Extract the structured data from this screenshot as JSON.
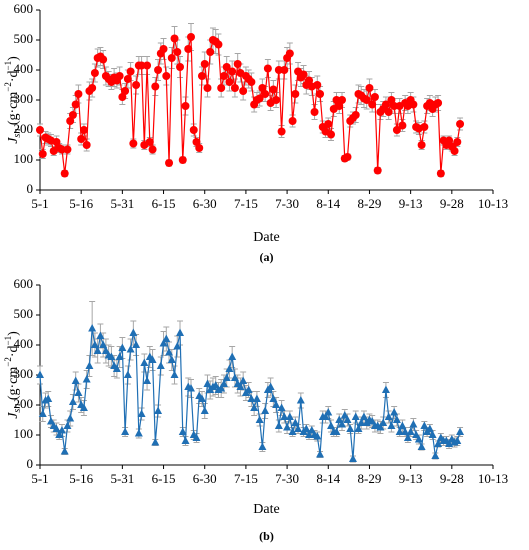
{
  "chart_data": [
    {
      "type": "line",
      "panel_label": "(a)",
      "xlabel": "Date",
      "ylabel_parts": [
        "J",
        "sn",
        " (g·cm",
        "−2",
        "·d",
        "−1",
        ")"
      ],
      "color": "#ff0000",
      "marker": "circle",
      "error_color": "#a6a6a6",
      "xlim": [
        0,
        165
      ],
      "xticks": [
        {
          "value": 0,
          "label": "5-1"
        },
        {
          "value": 15,
          "label": "5-16"
        },
        {
          "value": 30,
          "label": "5-31"
        },
        {
          "value": 45,
          "label": "6-15"
        },
        {
          "value": 60,
          "label": "6-30"
        },
        {
          "value": 75,
          "label": "7-15"
        },
        {
          "value": 90,
          "label": "7-30"
        },
        {
          "value": 105,
          "label": "8-14"
        },
        {
          "value": 120,
          "label": "8-29"
        },
        {
          "value": 135,
          "label": "9-13"
        },
        {
          "value": 150,
          "label": "9-28"
        },
        {
          "value": 165,
          "label": "10-13"
        }
      ],
      "ylim": [
        0,
        600
      ],
      "yticks": [
        0,
        100,
        200,
        300,
        400,
        500,
        600
      ],
      "x": [
        0,
        1,
        2,
        3,
        4,
        5,
        6,
        7,
        8,
        9,
        10,
        11,
        12,
        13,
        14,
        15,
        16,
        17,
        18,
        19,
        20,
        21,
        22,
        23,
        24,
        25,
        26,
        27,
        28,
        29,
        30,
        31,
        32,
        33,
        34,
        35,
        36,
        37,
        38,
        39,
        40,
        41,
        42,
        43,
        44,
        45,
        46,
        47,
        48,
        49,
        50,
        51,
        52,
        53,
        54,
        55,
        56,
        57,
        58,
        59,
        60,
        61,
        62,
        63,
        64,
        65,
        66,
        67,
        68,
        69,
        70,
        71,
        72,
        73,
        74,
        75,
        76,
        77,
        78,
        79,
        80,
        81,
        82,
        83,
        84,
        85,
        86,
        87,
        88,
        89,
        90,
        91,
        92,
        93,
        94,
        95,
        96,
        97,
        98,
        99,
        100,
        101,
        102,
        103,
        104,
        105,
        106,
        107,
        108,
        109,
        110,
        111,
        112,
        113,
        114,
        115,
        116,
        117,
        118,
        119,
        120,
        121,
        122,
        123,
        124,
        125,
        126,
        127,
        128,
        129,
        130,
        131,
        132,
        133,
        134,
        135,
        136,
        137,
        138,
        139,
        140,
        141,
        142,
        143,
        144,
        145,
        146,
        147,
        148,
        149,
        150,
        151,
        152,
        153
      ],
      "values": [
        200,
        120,
        175,
        170,
        165,
        130,
        160,
        140,
        135,
        55,
        135,
        230,
        250,
        285,
        320,
        170,
        200,
        150,
        330,
        340,
        390,
        440,
        445,
        435,
        380,
        370,
        360,
        375,
        365,
        380,
        310,
        330,
        370,
        395,
        155,
        350,
        415,
        415,
        150,
        415,
        160,
        135,
        345,
        400,
        455,
        470,
        380,
        90,
        440,
        505,
        460,
        410,
        100,
        280,
        470,
        510,
        200,
        160,
        140,
        380,
        420,
        340,
        460,
        500,
        495,
        485,
        340,
        380,
        410,
        360,
        395,
        340,
        420,
        390,
        330,
        380,
        370,
        360,
        285,
        300,
        305,
        340,
        320,
        405,
        290,
        335,
        300,
        400,
        195,
        400,
        440,
        455,
        230,
        320,
        395,
        375,
        385,
        350,
        365,
        345,
        260,
        350,
        320,
        210,
        195,
        220,
        185,
        270,
        300,
        280,
        300,
        105,
        110,
        230,
        240,
        250,
        320,
        315,
        305,
        300,
        340,
        285,
        310,
        65,
        260,
        270,
        285,
        260,
        300,
        280,
        200,
        280,
        215,
        290,
        280,
        300,
        285,
        210,
        205,
        150,
        210,
        280,
        290,
        270,
        285,
        290,
        55,
        165,
        150,
        165,
        145,
        130,
        160,
        220
      ],
      "errors": [
        20,
        15,
        20,
        20,
        20,
        15,
        20,
        15,
        15,
        10,
        15,
        25,
        25,
        30,
        30,
        20,
        20,
        20,
        30,
        30,
        30,
        30,
        30,
        30,
        30,
        25,
        25,
        30,
        25,
        30,
        25,
        25,
        30,
        30,
        15,
        30,
        30,
        30,
        15,
        30,
        15,
        15,
        30,
        35,
        35,
        35,
        30,
        10,
        35,
        40,
        40,
        35,
        10,
        30,
        40,
        45,
        20,
        15,
        15,
        30,
        40,
        30,
        40,
        40,
        40,
        35,
        30,
        30,
        35,
        30,
        35,
        30,
        35,
        30,
        30,
        30,
        30,
        30,
        25,
        25,
        25,
        30,
        25,
        30,
        25,
        30,
        25,
        30,
        20,
        30,
        35,
        35,
        20,
        30,
        30,
        30,
        30,
        30,
        30,
        30,
        25,
        30,
        25,
        20,
        20,
        20,
        20,
        25,
        25,
        25,
        25,
        10,
        10,
        20,
        20,
        25,
        30,
        30,
        30,
        30,
        30,
        25,
        25,
        10,
        25,
        25,
        25,
        25,
        25,
        25,
        20,
        25,
        20,
        25,
        25,
        25,
        25,
        20,
        20,
        15,
        20,
        25,
        25,
        25,
        25,
        25,
        10,
        15,
        15,
        15,
        15,
        15,
        15,
        20
      ]
    },
    {
      "type": "line",
      "panel_label": "(b)",
      "xlabel": "Date",
      "ylabel_parts": [
        "J",
        "sn",
        " (g·cm",
        "−2",
        "·d",
        "−1",
        ")"
      ],
      "color": "#1f6fb4",
      "marker": "triangle",
      "error_color": "#a6a6a6",
      "xlim": [
        0,
        165
      ],
      "xticks": [
        {
          "value": 0,
          "label": "5-1"
        },
        {
          "value": 15,
          "label": "5-16"
        },
        {
          "value": 30,
          "label": "5-31"
        },
        {
          "value": 45,
          "label": "6-15"
        },
        {
          "value": 60,
          "label": "6-30"
        },
        {
          "value": 75,
          "label": "7-15"
        },
        {
          "value": 90,
          "label": "7-30"
        },
        {
          "value": 105,
          "label": "8-14"
        },
        {
          "value": 120,
          "label": "8-29"
        },
        {
          "value": 135,
          "label": "9-13"
        },
        {
          "value": 150,
          "label": "9-28"
        },
        {
          "value": 165,
          "label": "10-13"
        }
      ],
      "ylim": [
        0,
        600
      ],
      "yticks": [
        0,
        100,
        200,
        300,
        400,
        500,
        600
      ],
      "x": [
        0,
        1,
        2,
        3,
        4,
        5,
        6,
        7,
        8,
        9,
        10,
        11,
        12,
        13,
        14,
        15,
        16,
        17,
        18,
        19,
        20,
        21,
        22,
        23,
        24,
        25,
        26,
        27,
        28,
        29,
        30,
        31,
        32,
        33,
        34,
        35,
        36,
        37,
        38,
        39,
        40,
        41,
        42,
        43,
        44,
        45,
        46,
        47,
        48,
        49,
        50,
        51,
        52,
        53,
        54,
        55,
        56,
        57,
        58,
        59,
        60,
        61,
        62,
        63,
        64,
        65,
        66,
        67,
        68,
        69,
        70,
        71,
        72,
        73,
        74,
        75,
        76,
        77,
        78,
        79,
        80,
        81,
        82,
        83,
        84,
        85,
        86,
        87,
        88,
        89,
        90,
        91,
        92,
        93,
        94,
        95,
        96,
        97,
        98,
        99,
        100,
        101,
        102,
        103,
        104,
        105,
        106,
        107,
        108,
        109,
        110,
        111,
        112,
        113,
        114,
        115,
        116,
        117,
        118,
        119,
        120,
        121,
        122,
        123,
        124,
        125,
        126,
        127,
        128,
        129,
        130,
        131,
        132,
        133,
        134,
        135,
        136,
        137,
        138,
        139,
        140,
        141,
        142,
        143,
        144,
        145,
        146,
        147,
        148,
        149,
        150,
        151,
        152,
        153
      ],
      "values": [
        300,
        170,
        215,
        220,
        145,
        130,
        120,
        100,
        115,
        45,
        130,
        155,
        210,
        280,
        240,
        200,
        190,
        285,
        330,
        455,
        400,
        380,
        430,
        400,
        380,
        365,
        360,
        330,
        320,
        360,
        390,
        110,
        300,
        385,
        440,
        400,
        105,
        170,
        340,
        280,
        360,
        350,
        75,
        180,
        330,
        405,
        420,
        375,
        350,
        300,
        395,
        440,
        110,
        80,
        260,
        255,
        100,
        90,
        230,
        220,
        180,
        270,
        250,
        260,
        265,
        250,
        255,
        270,
        290,
        320,
        360,
        290,
        270,
        260,
        280,
        240,
        250,
        220,
        190,
        220,
        150,
        60,
        180,
        250,
        260,
        220,
        200,
        130,
        190,
        160,
        125,
        160,
        110,
        140,
        120,
        215,
        110,
        120,
        100,
        115,
        100,
        95,
        35,
        160,
        160,
        175,
        130,
        110,
        110,
        150,
        135,
        165,
        150,
        120,
        20,
        160,
        120,
        140,
        160,
        140,
        150,
        145,
        130,
        130,
        125,
        140,
        250,
        160,
        130,
        175,
        150,
        110,
        130,
        110,
        90,
        110,
        135,
        100,
        85,
        60,
        130,
        110,
        120,
        100,
        30,
        70,
        90,
        80,
        80,
        70,
        85,
        75,
        80,
        110
      ],
      "errors": [
        30,
        25,
        25,
        25,
        20,
        20,
        20,
        15,
        20,
        10,
        20,
        25,
        25,
        30,
        30,
        25,
        25,
        30,
        35,
        90,
        40,
        40,
        40,
        40,
        40,
        35,
        35,
        35,
        30,
        35,
        35,
        15,
        30,
        35,
        40,
        35,
        15,
        20,
        30,
        30,
        35,
        35,
        10,
        20,
        30,
        40,
        40,
        35,
        35,
        30,
        35,
        40,
        15,
        15,
        30,
        30,
        15,
        15,
        25,
        25,
        25,
        30,
        30,
        30,
        30,
        25,
        30,
        30,
        30,
        30,
        35,
        30,
        30,
        30,
        30,
        25,
        25,
        25,
        25,
        25,
        20,
        15,
        25,
        25,
        30,
        25,
        25,
        20,
        25,
        20,
        20,
        20,
        15,
        20,
        15,
        25,
        15,
        15,
        15,
        15,
        15,
        15,
        10,
        20,
        20,
        20,
        20,
        15,
        15,
        20,
        20,
        20,
        20,
        15,
        10,
        20,
        15,
        20,
        20,
        20,
        20,
        20,
        20,
        20,
        20,
        20,
        25,
        20,
        20,
        20,
        20,
        15,
        20,
        15,
        15,
        15,
        20,
        15,
        15,
        10,
        15,
        15,
        15,
        15,
        10,
        10,
        15,
        15,
        15,
        15,
        15,
        15,
        15,
        15
      ]
    }
  ]
}
